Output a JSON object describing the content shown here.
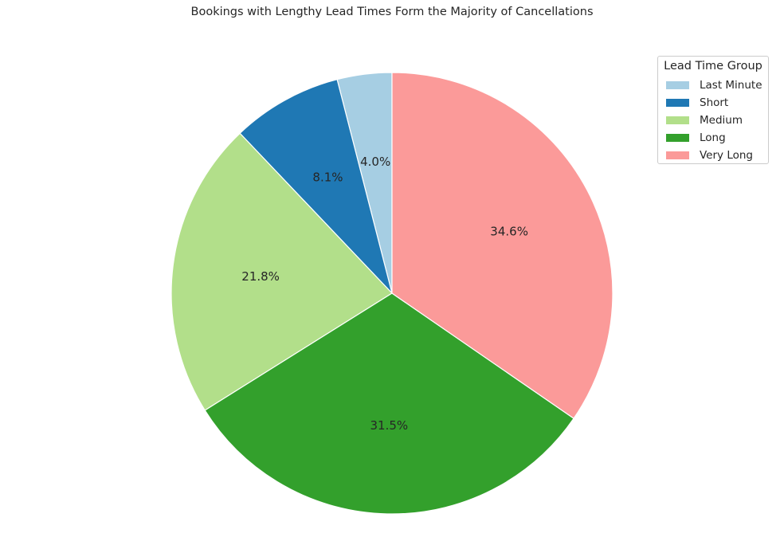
{
  "chart_data": {
    "type": "pie",
    "title": "Bookings with Lengthy Lead Times Form the Majority of Cancellations",
    "categories": [
      "Last Minute",
      "Short",
      "Medium",
      "Long",
      "Very Long"
    ],
    "values": [
      4.0,
      8.1,
      21.8,
      31.5,
      34.6
    ],
    "labels": [
      "4.0%",
      "8.1%",
      "21.8%",
      "31.5%",
      "34.6%"
    ],
    "colors": [
      "#a6cee3",
      "#1f78b4",
      "#b2df8a",
      "#33a02c",
      "#fb9a99"
    ],
    "start_angle_deg": 90,
    "direction": "counterclockwise",
    "legend": {
      "title": "Lead Time Group",
      "placement": "top-right"
    }
  }
}
